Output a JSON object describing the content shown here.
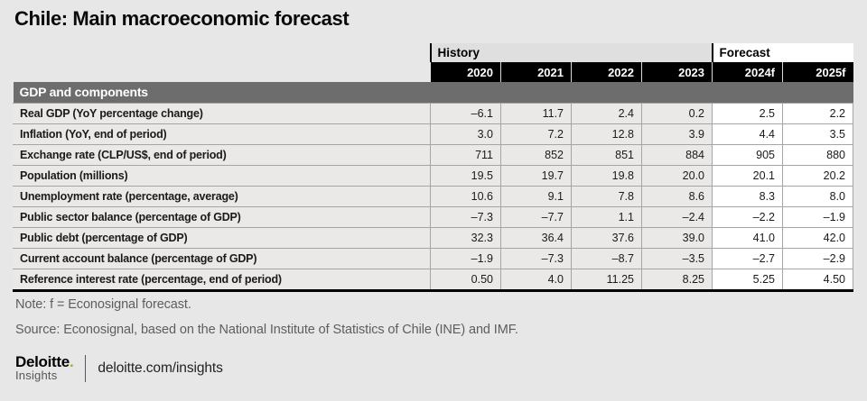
{
  "title": "Chile: Main macroeconomic forecast",
  "table": {
    "group_headers": {
      "history": "History",
      "forecast": "Forecast"
    },
    "years": [
      "2020",
      "2021",
      "2022",
      "2023",
      "2024f",
      "2025f"
    ],
    "section": "GDP and components",
    "rows": [
      {
        "label": "Real GDP (YoY percentage change)",
        "values": [
          "–6.1",
          "11.7",
          "2.4",
          "0.2",
          "2.5",
          "2.2"
        ]
      },
      {
        "label": "Inflation (YoY, end of period)",
        "values": [
          "3.0",
          "7.2",
          "12.8",
          "3.9",
          "4.4",
          "3.5"
        ]
      },
      {
        "label": "Exchange rate (CLP/US$, end of period)",
        "values": [
          "711",
          "852",
          "851",
          "884",
          "905",
          "880"
        ]
      },
      {
        "label": "Population (millions)",
        "values": [
          "19.5",
          "19.7",
          "19.8",
          "20.0",
          "20.1",
          "20.2"
        ]
      },
      {
        "label": "Unemployment rate (percentage, average)",
        "values": [
          "10.6",
          "9.1",
          "7.8",
          "8.6",
          "8.3",
          "8.0"
        ]
      },
      {
        "label": "Public sector balance (percentage of GDP)",
        "values": [
          "–7.3",
          "–7.7",
          "1.1",
          "–2.4",
          "–2.2",
          "–1.9"
        ]
      },
      {
        "label": "Public debt (percentage of GDP)",
        "values": [
          "32.3",
          "36.4",
          "37.6",
          "39.0",
          "41.0",
          "42.0"
        ]
      },
      {
        "label": "Current account balance (percentage of GDP)",
        "values": [
          "–1.9",
          "–7.3",
          "–8.7",
          "–3.5",
          "–2.7",
          "–2.9"
        ]
      },
      {
        "label": "Reference interest rate (percentage, end of period)",
        "values": [
          "0.50",
          "4.0",
          "11.25",
          "8.25",
          "5.25",
          "4.50"
        ]
      }
    ]
  },
  "chart_data": {
    "type": "table",
    "title": "Chile: Main macroeconomic forecast",
    "columns": [
      "2020",
      "2021",
      "2022",
      "2023",
      "2024f",
      "2025f"
    ],
    "column_groups": [
      {
        "label": "History",
        "span": 4
      },
      {
        "label": "Forecast",
        "span": 2
      }
    ],
    "section": "GDP and components",
    "rows": [
      {
        "label": "Real GDP (YoY percentage change)",
        "values": [
          -6.1,
          11.7,
          2.4,
          0.2,
          2.5,
          2.2
        ]
      },
      {
        "label": "Inflation (YoY, end of period)",
        "values": [
          3.0,
          7.2,
          12.8,
          3.9,
          4.4,
          3.5
        ]
      },
      {
        "label": "Exchange rate (CLP/US$, end of period)",
        "values": [
          711,
          852,
          851,
          884,
          905,
          880
        ]
      },
      {
        "label": "Population (millions)",
        "values": [
          19.5,
          19.7,
          19.8,
          20.0,
          20.1,
          20.2
        ]
      },
      {
        "label": "Unemployment rate (percentage, average)",
        "values": [
          10.6,
          9.1,
          7.8,
          8.6,
          8.3,
          8.0
        ]
      },
      {
        "label": "Public sector balance (percentage of GDP)",
        "values": [
          -7.3,
          -7.7,
          1.1,
          -2.4,
          -2.2,
          -1.9
        ]
      },
      {
        "label": "Public debt (percentage of GDP)",
        "values": [
          32.3,
          36.4,
          37.6,
          39.0,
          41.0,
          42.0
        ]
      },
      {
        "label": "Current account balance (percentage of GDP)",
        "values": [
          -1.9,
          -7.3,
          -8.7,
          -3.5,
          -2.7,
          -2.9
        ]
      },
      {
        "label": "Reference interest rate (percentage, end of period)",
        "values": [
          0.5,
          4.0,
          11.25,
          8.25,
          5.25,
          4.5
        ]
      }
    ]
  },
  "note": "Note: f = Econosignal forecast.",
  "source": "Source: Econosignal, based on the National Institute of Statistics of Chile (INE) and IMF.",
  "footer": {
    "brand": "Deloitte",
    "brand_dot": ".",
    "brand_sub": "Insights",
    "url": "deloitte.com/insights"
  },
  "colors": {
    "background": "#e7e7e7",
    "section_bar": "#6d6d6d",
    "year_bar": "#000000",
    "history_band": "#dfdfdf",
    "forecast_band": "#ffffff",
    "row_bg": "#eae9e7",
    "accent_green": "#86bc25"
  }
}
